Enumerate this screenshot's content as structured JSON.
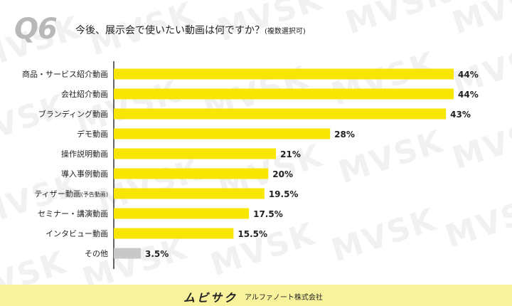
{
  "header": {
    "qnum": "Q6",
    "question": "今後、展示会で使いたい動画は何ですか？",
    "note": "(複数選択可)"
  },
  "watermark": {
    "text": "MVSK"
  },
  "footer": {
    "brand": "ムビサク",
    "company": "アルファノート株式会社"
  },
  "colors": {
    "bar": "#f7e600",
    "other_bar": "#c8c8c8",
    "axis": "#333333",
    "footer_bg": "#f8f29c"
  },
  "chart_data": {
    "type": "bar",
    "orientation": "horizontal",
    "categories": [
      "商品・サービス紹介動画",
      "会社紹介動画",
      "ブランディング動画",
      "デモ動画",
      "操作説明動画",
      "導入事例動画",
      "ティザー動画",
      "セミナー・講演動画",
      "インタビュー動画",
      "その他"
    ],
    "category_notes": [
      "",
      "",
      "",
      "",
      "",
      "",
      "(予告動画)",
      "",
      "",
      ""
    ],
    "values": [
      44,
      44,
      43,
      28,
      21,
      20,
      19.5,
      17.5,
      15.5,
      3.5
    ],
    "value_labels": [
      "44%",
      "44%",
      "43%",
      "28%",
      "21%",
      "20%",
      "19.5%",
      "17.5%",
      "15.5%",
      "3.5%"
    ],
    "unit": "%",
    "title": "今後、展示会で使いたい動画は何ですか？(複数選択可)",
    "grid": false,
    "legend": "none"
  }
}
